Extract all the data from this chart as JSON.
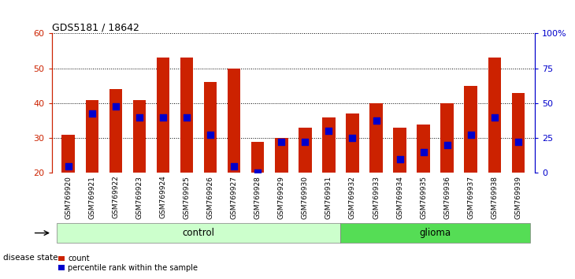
{
  "title": "GDS5181 / 18642",
  "samples": [
    "GSM769920",
    "GSM769921",
    "GSM769922",
    "GSM769923",
    "GSM769924",
    "GSM769925",
    "GSM769926",
    "GSM769927",
    "GSM769928",
    "GSM769929",
    "GSM769930",
    "GSM769931",
    "GSM769932",
    "GSM769933",
    "GSM769934",
    "GSM769935",
    "GSM769936",
    "GSM769937",
    "GSM769938",
    "GSM769939"
  ],
  "bar_heights": [
    31,
    41,
    44,
    41,
    53,
    53,
    46,
    50,
    29,
    30,
    33,
    36,
    37,
    40,
    33,
    34,
    40,
    45,
    53,
    43
  ],
  "blue_dot_values": [
    22,
    37,
    39,
    36,
    36,
    36,
    31,
    22,
    20,
    29,
    29,
    32,
    30,
    35,
    24,
    26,
    28,
    31,
    36,
    29
  ],
  "control_count": 12,
  "glioma_count": 8,
  "y_min": 20,
  "y_max": 60,
  "y_left_ticks": [
    20,
    30,
    40,
    50,
    60
  ],
  "y_right_ticks": [
    0,
    25,
    50,
    75,
    100
  ],
  "bar_color": "#CC2200",
  "dot_color": "#0000CC",
  "control_color": "#CCFFCC",
  "glioma_color": "#55DD55",
  "xticklabel_bg": "#CCCCCC",
  "legend_count_label": "count",
  "legend_pct_label": "percentile rank within the sample",
  "disease_state_label": "disease state",
  "control_label": "control",
  "glioma_label": "glioma"
}
